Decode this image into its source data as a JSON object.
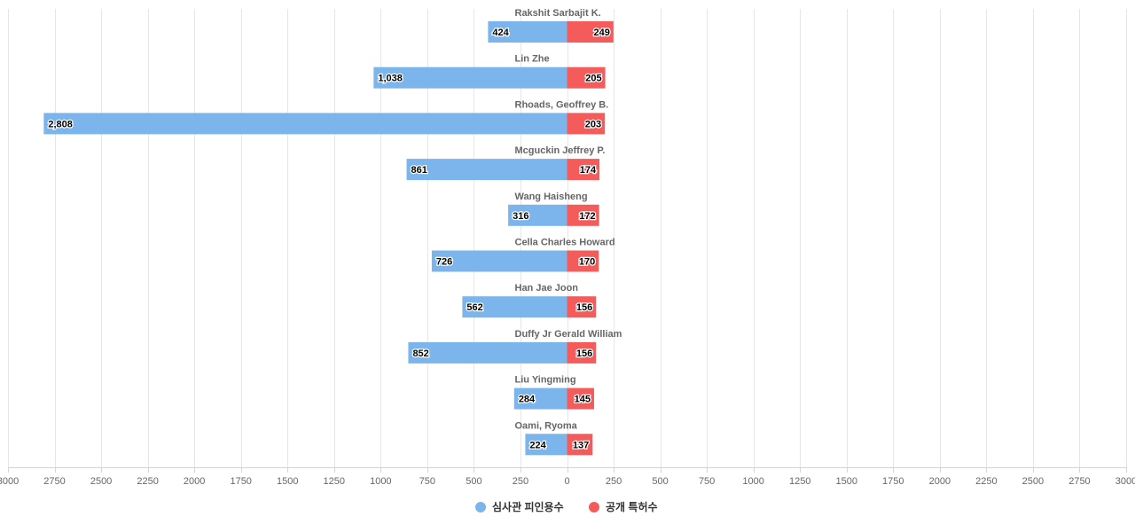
{
  "chart_data": {
    "type": "bar",
    "orientation": "horizontal-diverging",
    "categories": [
      "Rakshit Sarbajit K.",
      "Lin Zhe",
      "Rhoads, Geoffrey B.",
      "Mcguckin Jeffrey P.",
      "Wang Haisheng",
      "Cella Charles Howard",
      "Han Jae Joon",
      "Duffy Jr Gerald William",
      "Liu Yingming",
      "Oami, Ryoma"
    ],
    "series": [
      {
        "name": "심사관 피인용수",
        "side": "left",
        "color": "#7cb5ec",
        "values": [
          424,
          1038,
          2808,
          861,
          316,
          726,
          562,
          852,
          284,
          224
        ],
        "labels": [
          "424",
          "1,038",
          "2,808",
          "861",
          "316",
          "726",
          "562",
          "852",
          "284",
          "224"
        ]
      },
      {
        "name": "공개 특허수",
        "side": "right",
        "color": "#f45b5b",
        "values": [
          249,
          205,
          203,
          174,
          172,
          170,
          156,
          156,
          145,
          137
        ],
        "labels": [
          "249",
          "205",
          "203",
          "174",
          "172",
          "170",
          "156",
          "156",
          "145",
          "137"
        ]
      }
    ],
    "xlim": [
      -3000,
      3000
    ],
    "x_ticks": [
      -3000,
      -2750,
      -2500,
      -2250,
      -2000,
      -1750,
      -1500,
      -1250,
      -1000,
      -750,
      -500,
      -250,
      0,
      250,
      500,
      750,
      1000,
      1250,
      1500,
      1750,
      2000,
      2250,
      2500,
      2750,
      3000
    ],
    "x_tick_labels": [
      "3000",
      "2750",
      "2500",
      "2250",
      "2000",
      "1750",
      "1500",
      "1250",
      "1000",
      "750",
      "500",
      "250",
      "0",
      "250",
      "500",
      "750",
      "1000",
      "1250",
      "1500",
      "1750",
      "2000",
      "2250",
      "2500",
      "2750",
      "3000"
    ],
    "grid": true,
    "legend_position": "bottom-center",
    "title": "",
    "xlabel": "",
    "ylabel": ""
  }
}
